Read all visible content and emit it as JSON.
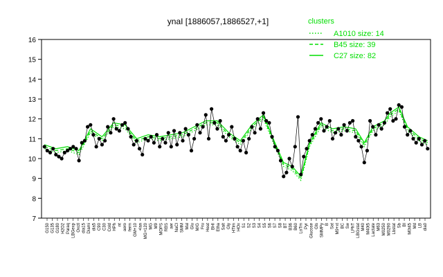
{
  "chart_data": {
    "type": "line",
    "title": "ynaI [1886057,1886527,+1]",
    "ylim": [
      7,
      16
    ],
    "yticks": [
      7,
      8,
      9,
      10,
      11,
      12,
      13,
      14,
      15,
      16
    ],
    "colors": {
      "points": "#000000",
      "lines": "#00dd00",
      "legend": "#00dd00"
    },
    "x_tick_labels": [
      "G150",
      "G135",
      "G180",
      "H2O2",
      "Paraq",
      "LBGexp",
      "Oxctl",
      "dia15",
      "Diami",
      "dia5",
      "C90",
      "C30",
      "Cold",
      "HPh",
      "nt",
      "aero",
      "ferm",
      "GM+10",
      "+lan",
      "MG+120",
      "MG",
      "M9",
      "MOPS",
      "RBS",
      "aer",
      "NaCl",
      "SMM",
      "Mal",
      "Glu",
      "M/G",
      "Fru",
      "Heat",
      "BHI",
      "Etha",
      "Salt",
      "Gly",
      "HTim",
      "HOx",
      "S1",
      "S2",
      "S3",
      "S4",
      "S5",
      "S6",
      "S7",
      "S8",
      "BT",
      "B36",
      "B60",
      "LoTm",
      "Pyr",
      "Glucose",
      "Gls",
      "SMMPy",
      "B",
      "Sat",
      "M9+xt",
      "BC",
      "Sw",
      "LPhT",
      "LBGstat",
      "M40",
      "M40t5",
      "Lactate",
      "M63",
      "M0250",
      "M0290",
      "Lbstat",
      "Sb",
      "BI",
      "M0t45",
      "Md",
      "LB",
      "dia0"
    ],
    "legend": {
      "title": "clusters",
      "entries": [
        {
          "label": "A1010 size: 14",
          "style": "dotted"
        },
        {
          "label": "B45 size: 39",
          "style": "dashed"
        },
        {
          "label": "C27 size: 82",
          "style": "solid"
        }
      ]
    },
    "points": [
      [
        1,
        10.6
      ],
      [
        1.5,
        10.4
      ],
      [
        2,
        10.3
      ],
      [
        2.5,
        10.5
      ],
      [
        3,
        10.2
      ],
      [
        3.5,
        10.1
      ],
      [
        4,
        10.0
      ],
      [
        4.5,
        10.3
      ],
      [
        5,
        10.4
      ],
      [
        5.5,
        10.5
      ],
      [
        6,
        10.6
      ],
      [
        6.5,
        10.5
      ],
      [
        7,
        9.9
      ],
      [
        7.5,
        10.8
      ],
      [
        8,
        10.9
      ],
      [
        8.5,
        11.6
      ],
      [
        9,
        11.7
      ],
      [
        9.5,
        11.2
      ],
      [
        10,
        10.6
      ],
      [
        10.5,
        11.0
      ],
      [
        11,
        10.7
      ],
      [
        11.5,
        10.9
      ],
      [
        12,
        11.6
      ],
      [
        12.5,
        11.3
      ],
      [
        13,
        12.0
      ],
      [
        13.5,
        11.5
      ],
      [
        14,
        11.4
      ],
      [
        14.5,
        11.7
      ],
      [
        15,
        11.8
      ],
      [
        15.5,
        11.5
      ],
      [
        16,
        11.1
      ],
      [
        16.5,
        10.7
      ],
      [
        17,
        10.9
      ],
      [
        17.5,
        10.5
      ],
      [
        18,
        10.2
      ],
      [
        18.5,
        11.0
      ],
      [
        19,
        10.9
      ],
      [
        19.5,
        11.1
      ],
      [
        20,
        10.8
      ],
      [
        20.5,
        11.2
      ],
      [
        21,
        10.6
      ],
      [
        21.5,
        11.0
      ],
      [
        22,
        10.8
      ],
      [
        22.5,
        11.3
      ],
      [
        23,
        10.6
      ],
      [
        23.5,
        11.4
      ],
      [
        24,
        10.7
      ],
      [
        24.5,
        11.3
      ],
      [
        25,
        10.9
      ],
      [
        25.5,
        11.5
      ],
      [
        26,
        11.2
      ],
      [
        26.5,
        10.4
      ],
      [
        27,
        11.0
      ],
      [
        27.5,
        11.7
      ],
      [
        28,
        11.3
      ],
      [
        28.5,
        11.6
      ],
      [
        29,
        12.2
      ],
      [
        29.5,
        11.0
      ],
      [
        30,
        12.5
      ],
      [
        30.5,
        11.8
      ],
      [
        31,
        11.5
      ],
      [
        31.5,
        11.9
      ],
      [
        32,
        11.1
      ],
      [
        32.5,
        10.9
      ],
      [
        33,
        11.2
      ],
      [
        33.5,
        11.6
      ],
      [
        34,
        11.0
      ],
      [
        34.5,
        10.6
      ],
      [
        35,
        10.4
      ],
      [
        35.5,
        10.9
      ],
      [
        36,
        10.3
      ],
      [
        36.5,
        11.0
      ],
      [
        37,
        11.6
      ],
      [
        37.5,
        11.3
      ],
      [
        38,
        12.0
      ],
      [
        38.5,
        11.5
      ],
      [
        39,
        12.3
      ],
      [
        39.5,
        11.9
      ],
      [
        40,
        11.8
      ],
      [
        40.5,
        11.1
      ],
      [
        41,
        10.6
      ],
      [
        41.5,
        10.4
      ],
      [
        42,
        9.9
      ],
      [
        42.5,
        9.1
      ],
      [
        43,
        9.3
      ],
      [
        43.5,
        10.0
      ],
      [
        44,
        9.6
      ],
      [
        44.5,
        10.6
      ],
      [
        45,
        12.1
      ],
      [
        45.5,
        9.2
      ],
      [
        46,
        10.1
      ],
      [
        46.5,
        10.5
      ],
      [
        47,
        10.9
      ],
      [
        47.5,
        11.2
      ],
      [
        48,
        11.5
      ],
      [
        48.5,
        11.8
      ],
      [
        49,
        12.0
      ],
      [
        49.5,
        11.4
      ],
      [
        50,
        11.6
      ],
      [
        50.5,
        11.9
      ],
      [
        51,
        11.0
      ],
      [
        51.5,
        11.3
      ],
      [
        52,
        11.5
      ],
      [
        52.5,
        11.2
      ],
      [
        53,
        11.7
      ],
      [
        53.5,
        11.4
      ],
      [
        54,
        11.8
      ],
      [
        54.5,
        11.9
      ],
      [
        55,
        11.1
      ],
      [
        55.5,
        10.9
      ],
      [
        56,
        10.6
      ],
      [
        56.5,
        9.8
      ],
      [
        57,
        10.4
      ],
      [
        57.5,
        11.9
      ],
      [
        58,
        11.6
      ],
      [
        58.5,
        11.2
      ],
      [
        59,
        11.7
      ],
      [
        59.5,
        11.5
      ],
      [
        60,
        11.8
      ],
      [
        60.5,
        12.3
      ],
      [
        61,
        12.5
      ],
      [
        61.5,
        11.9
      ],
      [
        62,
        12.0
      ],
      [
        62.5,
        12.7
      ],
      [
        63,
        12.6
      ],
      [
        63.5,
        11.6
      ],
      [
        64,
        11.2
      ],
      [
        64.5,
        11.4
      ],
      [
        65,
        11.0
      ],
      [
        65.5,
        10.8
      ],
      [
        66,
        11.0
      ],
      [
        66.5,
        10.7
      ],
      [
        67,
        10.9
      ],
      [
        67.5,
        10.5
      ]
    ],
    "series": [
      {
        "values": [
          [
            1,
            10.5
          ],
          [
            3,
            10.3
          ],
          [
            5,
            10.4
          ],
          [
            7,
            10.2
          ],
          [
            9,
            11.3
          ],
          [
            11,
            10.9
          ],
          [
            13,
            11.6
          ],
          [
            15,
            11.5
          ],
          [
            17,
            10.8
          ],
          [
            19,
            11.0
          ],
          [
            21,
            10.9
          ],
          [
            23,
            11.0
          ],
          [
            25,
            11.1
          ],
          [
            27,
            11.4
          ],
          [
            29,
            11.7
          ],
          [
            31,
            11.7
          ],
          [
            33,
            11.1
          ],
          [
            35,
            10.7
          ],
          [
            37,
            11.5
          ],
          [
            39,
            12.0
          ],
          [
            41,
            10.6
          ],
          [
            42.5,
            9.6
          ],
          [
            44,
            9.4
          ],
          [
            45.5,
            8.9
          ],
          [
            47,
            10.6
          ],
          [
            49,
            11.6
          ],
          [
            51,
            11.3
          ],
          [
            53,
            11.4
          ],
          [
            55,
            11.3
          ],
          [
            56.5,
            10.6
          ],
          [
            58,
            11.4
          ],
          [
            60,
            11.7
          ],
          [
            61,
            12.1
          ],
          [
            62.5,
            12.4
          ],
          [
            64,
            11.4
          ],
          [
            66,
            10.9
          ],
          [
            67.5,
            10.7
          ]
        ]
      },
      {
        "values": [
          [
            1,
            10.6
          ],
          [
            3,
            10.4
          ],
          [
            5,
            10.5
          ],
          [
            7,
            10.3
          ],
          [
            9,
            11.4
          ],
          [
            11,
            11.0
          ],
          [
            13,
            11.7
          ],
          [
            15,
            11.6
          ],
          [
            17,
            10.9
          ],
          [
            19,
            11.1
          ],
          [
            21,
            11.0
          ],
          [
            23,
            11.1
          ],
          [
            25,
            11.2
          ],
          [
            27,
            11.5
          ],
          [
            29,
            11.8
          ],
          [
            31,
            11.8
          ],
          [
            33,
            11.2
          ],
          [
            35,
            10.8
          ],
          [
            37,
            11.6
          ],
          [
            39,
            12.1
          ],
          [
            41,
            10.7
          ],
          [
            42.5,
            9.7
          ],
          [
            44,
            9.5
          ],
          [
            45.5,
            9.0
          ],
          [
            47,
            10.7
          ],
          [
            49,
            11.7
          ],
          [
            51,
            11.4
          ],
          [
            53,
            11.5
          ],
          [
            55,
            11.4
          ],
          [
            56.5,
            10.7
          ],
          [
            58,
            11.5
          ],
          [
            60,
            11.8
          ],
          [
            61,
            12.2
          ],
          [
            62.5,
            12.5
          ],
          [
            64,
            11.5
          ],
          [
            66,
            11.0
          ],
          [
            67.5,
            10.8
          ]
        ]
      },
      {
        "values": [
          [
            1,
            10.7
          ],
          [
            3,
            10.5
          ],
          [
            5,
            10.6
          ],
          [
            7,
            10.4
          ],
          [
            9,
            11.5
          ],
          [
            11,
            11.1
          ],
          [
            13,
            11.8
          ],
          [
            15,
            11.7
          ],
          [
            17,
            11.0
          ],
          [
            19,
            11.2
          ],
          [
            21,
            11.1
          ],
          [
            23,
            11.2
          ],
          [
            25,
            11.3
          ],
          [
            27,
            11.6
          ],
          [
            29,
            11.9
          ],
          [
            31,
            11.9
          ],
          [
            33,
            11.3
          ],
          [
            35,
            10.9
          ],
          [
            37,
            11.7
          ],
          [
            39,
            12.2
          ],
          [
            41,
            10.8
          ],
          [
            42.5,
            9.8
          ],
          [
            44,
            9.6
          ],
          [
            45.5,
            9.1
          ],
          [
            47,
            10.8
          ],
          [
            49,
            11.8
          ],
          [
            51,
            11.5
          ],
          [
            53,
            11.6
          ],
          [
            55,
            11.5
          ],
          [
            56.5,
            10.8
          ],
          [
            58,
            11.6
          ],
          [
            60,
            11.9
          ],
          [
            61,
            12.3
          ],
          [
            62.5,
            12.6
          ],
          [
            64,
            11.6
          ],
          [
            66,
            11.1
          ],
          [
            67.5,
            10.9
          ]
        ]
      }
    ]
  }
}
